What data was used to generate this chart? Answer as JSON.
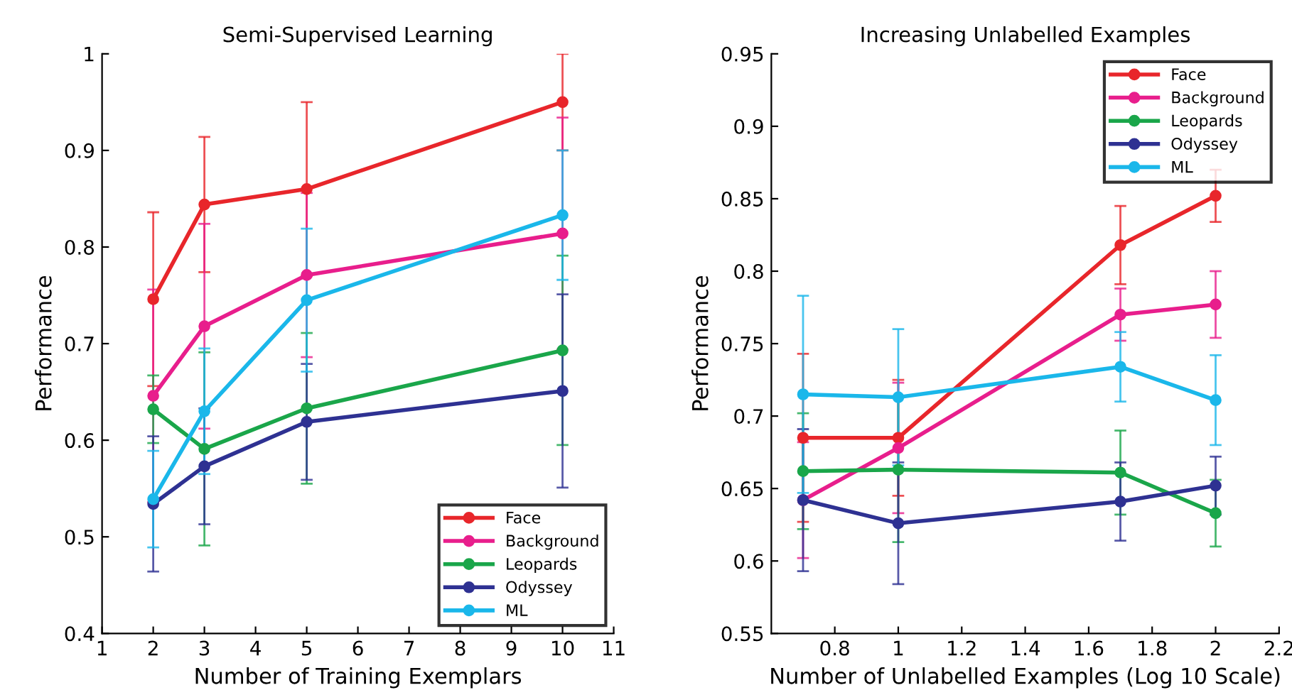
{
  "chart_data": [
    {
      "type": "line",
      "title": "Semi-Supervised Learning",
      "xlabel": "Number of Training Exemplars",
      "ylabel": "Performance",
      "x": [
        2,
        3,
        5,
        10
      ],
      "xlim": [
        1,
        11
      ],
      "xticks": [
        1,
        2,
        3,
        4,
        5,
        6,
        7,
        8,
        9,
        10,
        11
      ],
      "ylim": [
        0.4,
        1
      ],
      "yticks": [
        0.4,
        0.5,
        0.6,
        0.7,
        0.8,
        0.9,
        1
      ],
      "marker": "circle",
      "grid": false,
      "legend": "bottom right",
      "series": [
        {
          "name": "Face",
          "color": "#e8262b",
          "values": [
            0.746,
            0.844,
            0.86,
            0.95
          ],
          "errors": [
            0.09,
            0.07,
            0.09,
            0.05
          ]
        },
        {
          "name": "Background",
          "color": "#e81e8c",
          "values": [
            0.646,
            0.718,
            0.771,
            0.814
          ],
          "errors": [
            0.11,
            0.106,
            0.085,
            0.12
          ]
        },
        {
          "name": "Leopards",
          "color": "#1aa64a",
          "values": [
            0.632,
            0.591,
            0.633,
            0.693
          ],
          "errors": [
            0.035,
            0.1,
            0.078,
            0.098
          ]
        },
        {
          "name": "Odyssey",
          "color": "#2e3192",
          "values": [
            0.534,
            0.573,
            0.619,
            0.651
          ],
          "errors": [
            0.07,
            0.06,
            0.06,
            0.1
          ]
        },
        {
          "name": "ML",
          "color": "#1ab7ea",
          "values": [
            0.539,
            0.63,
            0.745,
            0.833
          ],
          "errors": [
            0.05,
            0.065,
            0.074,
            0.067
          ]
        }
      ]
    },
    {
      "type": "line",
      "title": "Increasing Unlabelled Examples",
      "xlabel": "Number of Unlabelled Examples (Log 10 Scale)",
      "ylabel": "Performance",
      "x": [
        0.7,
        1,
        1.7,
        2
      ],
      "xlim": [
        0.6,
        2.2
      ],
      "xticks": [
        0.8,
        1,
        1.2,
        1.4,
        1.6,
        1.8,
        2,
        2.2
      ],
      "ylim": [
        0.55,
        0.95
      ],
      "yticks": [
        0.55,
        0.6,
        0.65,
        0.7,
        0.75,
        0.8,
        0.85,
        0.9,
        0.95
      ],
      "marker": "circle",
      "grid": false,
      "legend": "top right",
      "series": [
        {
          "name": "Face",
          "color": "#e8262b",
          "values": [
            0.685,
            0.685,
            0.818,
            0.852
          ],
          "errors": [
            0.058,
            0.04,
            0.027,
            0.018
          ]
        },
        {
          "name": "Background",
          "color": "#e81e8c",
          "values": [
            0.642,
            0.678,
            0.77,
            0.777
          ],
          "errors": [
            0.04,
            0.045,
            0.018,
            0.023
          ]
        },
        {
          "name": "Leopards",
          "color": "#1aa64a",
          "values": [
            0.662,
            0.663,
            0.661,
            0.633
          ],
          "errors": [
            0.04,
            0.05,
            0.029,
            0.023
          ]
        },
        {
          "name": "Odyssey",
          "color": "#2e3192",
          "values": [
            0.642,
            0.626,
            0.641,
            0.652
          ],
          "errors": [
            0.049,
            0.042,
            0.027,
            0.02
          ]
        },
        {
          "name": "ML",
          "color": "#1ab7ea",
          "values": [
            0.715,
            0.713,
            0.734,
            0.711
          ],
          "errors": [
            0.068,
            0.047,
            0.024,
            0.031
          ]
        }
      ]
    }
  ]
}
